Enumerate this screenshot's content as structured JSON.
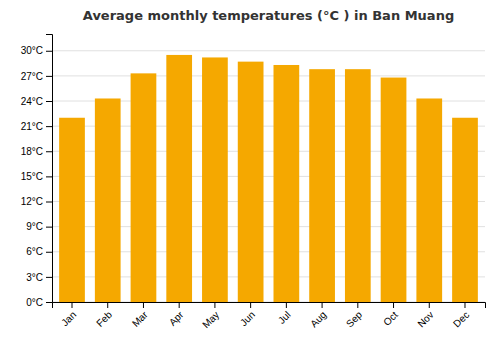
{
  "chart_data": {
    "type": "bar",
    "title": "Average monthly temperatures (°C ) in Ban Muang",
    "categories": [
      "Jan",
      "Feb",
      "Mar",
      "Apr",
      "May",
      "Jun",
      "Jul",
      "Aug",
      "Sep",
      "Oct",
      "Nov",
      "Dec"
    ],
    "values": [
      22.0,
      24.3,
      27.3,
      29.5,
      29.2,
      28.7,
      28.3,
      27.8,
      27.8,
      26.8,
      24.3,
      22.0
    ],
    "color": "#F5A800",
    "ylim": [
      0,
      32
    ],
    "yticks": [
      {
        "value": 0,
        "label": "0°C"
      },
      {
        "value": 3,
        "label": "3°C"
      },
      {
        "value": 6,
        "label": "6°C"
      },
      {
        "value": 9,
        "label": "9°C"
      },
      {
        "value": 12,
        "label": "12°C"
      },
      {
        "value": 15,
        "label": "15°C"
      },
      {
        "value": 18,
        "label": "18°C"
      },
      {
        "value": 21,
        "label": "21°C"
      },
      {
        "value": 24,
        "label": "24°C"
      },
      {
        "value": 27,
        "label": "27°C"
      },
      {
        "value": 30,
        "label": "30°C"
      }
    ],
    "grid": true
  }
}
